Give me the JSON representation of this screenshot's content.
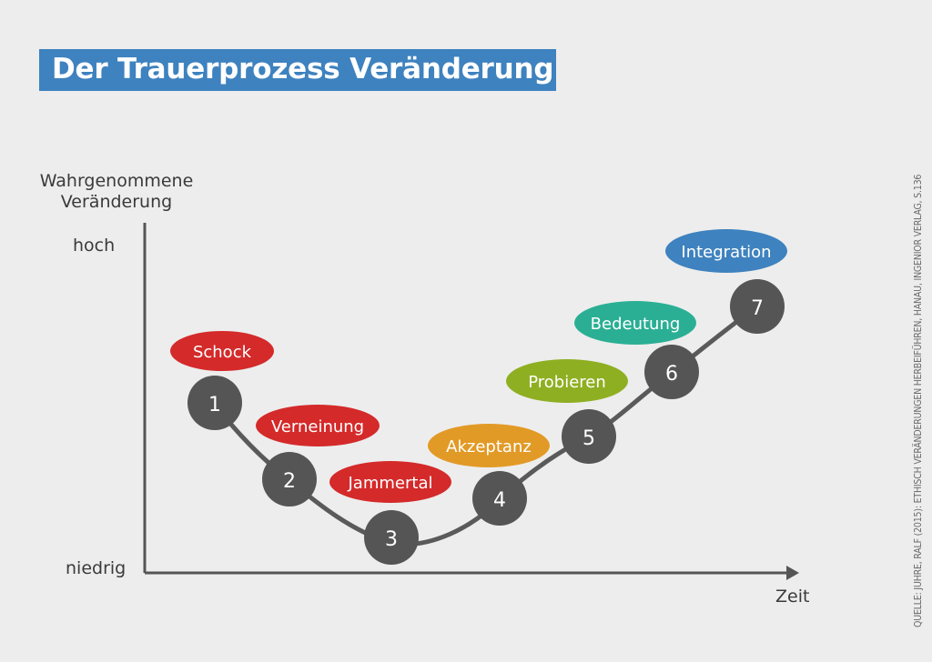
{
  "title": "Der Trauerprozess Veränderung",
  "y_axis": {
    "label_line1": "Wahrgenommene",
    "label_line2": "Veränderung",
    "high": "hoch",
    "low": "niedrig"
  },
  "x_axis": {
    "label": "Zeit"
  },
  "source": "QUELLE: JUHRE, RALF (2015): ETHISCH VERÄNDERUNGEN HERBEIFÜHREN, HANAU, INGENIOR VERLAG, S.136",
  "stages": [
    {
      "number": "1",
      "label": "Schock",
      "color": "#d42a2a"
    },
    {
      "number": "2",
      "label": "Verneinung",
      "color": "#d42a2a"
    },
    {
      "number": "3",
      "label": "Jammertal",
      "color": "#d42a2a"
    },
    {
      "number": "4",
      "label": "Akzeptanz",
      "color": "#e29a26"
    },
    {
      "number": "5",
      "label": "Probieren",
      "color": "#8faf22"
    },
    {
      "number": "6",
      "label": "Bedeutung",
      "color": "#2aaf94"
    },
    {
      "number": "7",
      "label": "Integration",
      "color": "#3e82bf"
    }
  ],
  "colors": {
    "node": "#555555",
    "curve": "#5a5a5a",
    "axis": "#555555",
    "title_bg": "#3e82bf"
  }
}
